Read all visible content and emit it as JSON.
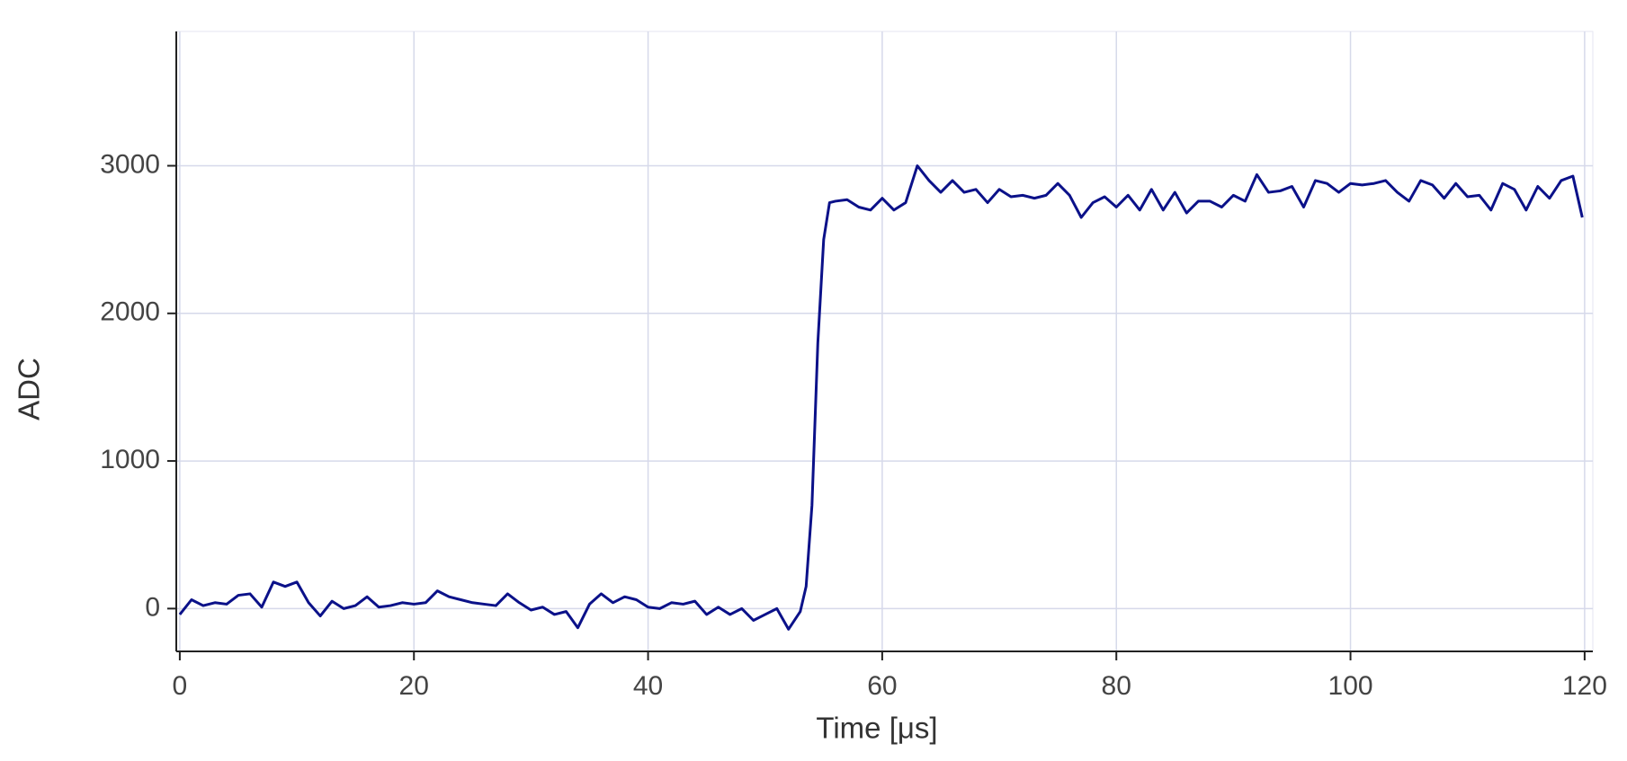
{
  "chart_data": {
    "type": "line",
    "x_label": "Time  [μs]",
    "y_label": "ADC",
    "x": [
      0,
      1,
      2,
      3,
      4,
      5,
      6,
      7,
      8,
      9,
      10,
      11,
      12,
      13,
      14,
      15,
      16,
      17,
      18,
      19,
      20,
      21,
      22,
      23,
      24,
      25,
      26,
      27,
      28,
      29,
      30,
      31,
      32,
      33,
      34,
      35,
      36,
      37,
      38,
      39,
      40,
      41,
      42,
      43,
      44,
      45,
      46,
      47,
      48,
      49,
      50,
      51,
      52,
      53,
      53.5,
      54,
      54.5,
      55,
      55.5,
      56,
      57,
      58,
      59,
      60,
      61,
      62,
      63,
      64,
      65,
      66,
      67,
      68,
      69,
      70,
      71,
      72,
      73,
      74,
      75,
      76,
      77,
      78,
      79,
      80,
      81,
      82,
      83,
      84,
      85,
      86,
      87,
      88,
      89,
      90,
      91,
      92,
      93,
      94,
      95,
      96,
      97,
      98,
      99,
      100,
      101,
      102,
      103,
      104,
      105,
      106,
      107,
      108,
      109,
      110,
      111,
      112,
      113,
      114,
      115,
      116,
      117,
      118,
      119,
      119.8
    ],
    "series": [
      {
        "name": "ADC",
        "color": "#0b1189",
        "values": [
          -40,
          60,
          20,
          40,
          30,
          90,
          100,
          10,
          180,
          150,
          180,
          40,
          -50,
          50,
          0,
          20,
          80,
          10,
          20,
          40,
          30,
          40,
          120,
          80,
          60,
          40,
          30,
          20,
          100,
          40,
          -10,
          10,
          -40,
          -20,
          -130,
          30,
          100,
          40,
          80,
          60,
          10,
          0,
          40,
          30,
          50,
          -40,
          10,
          -40,
          0,
          -80,
          -40,
          0,
          -140,
          -20,
          150,
          700,
          1800,
          2500,
          2750,
          2760,
          2770,
          2720,
          2700,
          2780,
          2700,
          2750,
          3000,
          2900,
          2820,
          2900,
          2820,
          2840,
          2750,
          2840,
          2790,
          2800,
          2780,
          2800,
          2880,
          2800,
          2650,
          2750,
          2790,
          2720,
          2800,
          2700,
          2840,
          2700,
          2820,
          2680,
          2760,
          2760,
          2720,
          2800,
          2760,
          2940,
          2820,
          2830,
          2860,
          2720,
          2900,
          2880,
          2820,
          2880,
          2870,
          2880,
          2900,
          2820,
          2760,
          2900,
          2870,
          2780,
          2880,
          2790,
          2800,
          2700,
          2880,
          2840,
          2700,
          2860,
          2780,
          2900,
          2930,
          2650
        ]
      }
    ],
    "xlim": [
      -0.3,
      120.7
    ],
    "ylim": [
      -290,
      3910
    ],
    "xticks": [
      0,
      20,
      40,
      60,
      80,
      100,
      120
    ],
    "yticks": [
      0,
      1000,
      2000,
      3000
    ],
    "grid": true
  }
}
